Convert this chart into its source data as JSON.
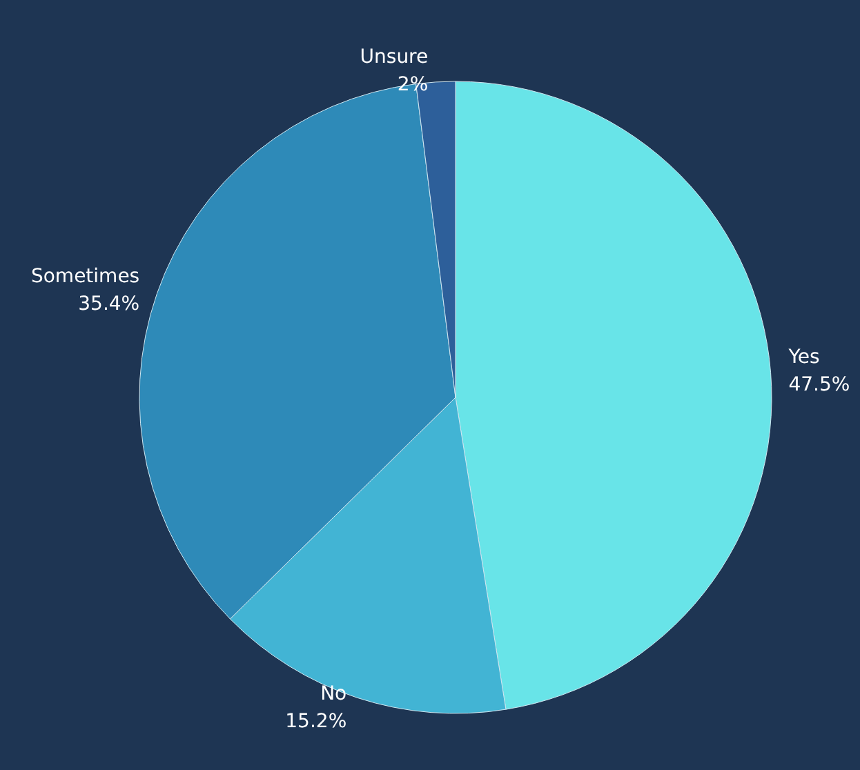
{
  "chart_data": {
    "type": "pie",
    "categories": [
      "Yes",
      "No",
      "Sometimes",
      "Unsure"
    ],
    "values": [
      47.5,
      15.2,
      35.4,
      2
    ],
    "value_labels": [
      "47.5%",
      "15.2%",
      "35.4%",
      "2%"
    ],
    "colors": [
      "#68e4e8",
      "#42b4d4",
      "#2e8ab8",
      "#2d5f9a"
    ]
  }
}
